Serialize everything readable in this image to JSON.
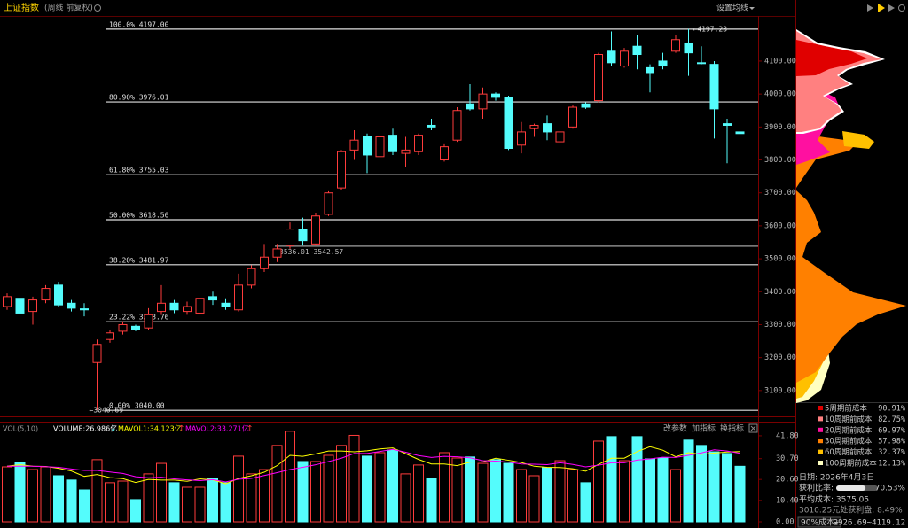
{
  "chart_data": [
    {
      "type": "candlestick",
      "title": "上证指数",
      "subtitle": "(周线 前复权)",
      "ma_button": "设置均线",
      "open": [
        3355,
        3380,
        3340,
        3375,
        3420,
        3365,
        3348,
        3185,
        3255,
        3280,
        3295,
        3290,
        3340,
        3365,
        3340,
        3335,
        3385,
        3365,
        3345,
        3420,
        3470,
        3505,
        3540,
        3590,
        3545,
        3635,
        3715,
        3830,
        3870,
        3810,
        3875,
        3820,
        3825,
        3905,
        3800,
        3860,
        3970,
        3955,
        4000,
        3990,
        3845,
        3895,
        3910,
        3855,
        3900,
        3970,
        3980,
        4130,
        4085,
        4145,
        4080,
        4100,
        4130,
        4155,
        4095,
        4090,
        3910,
        3885
      ],
      "high": [
        3395,
        3390,
        3385,
        3420,
        3430,
        3375,
        3365,
        3255,
        3285,
        3310,
        3300,
        3350,
        3420,
        3375,
        3370,
        3385,
        3400,
        3380,
        3455,
        3480,
        3545,
        3545,
        3610,
        3625,
        3640,
        3705,
        3830,
        3890,
        3880,
        3890,
        3895,
        3870,
        3880,
        3925,
        3850,
        3960,
        4030,
        4020,
        4005,
        3995,
        3915,
        3910,
        3935,
        3890,
        3965,
        3975,
        4125,
        4190,
        4140,
        4180,
        4090,
        4125,
        4180,
        4197.23,
        4145,
        4100,
        3925,
        3945
      ],
      "low": [
        3345,
        3325,
        3300,
        3365,
        3355,
        3340,
        3325,
        3040.69,
        3245,
        3270,
        3280,
        3285,
        3330,
        3335,
        3330,
        3330,
        3360,
        3345,
        3340,
        3410,
        3460,
        3490,
        3530,
        3540,
        3540,
        3630,
        3710,
        3800,
        3760,
        3800,
        3815,
        3780,
        3815,
        3890,
        3795,
        3855,
        3950,
        3925,
        3980,
        3830,
        3820,
        3870,
        3860,
        3820,
        3895,
        3955,
        3975,
        4085,
        4080,
        4075,
        4005,
        4075,
        4125,
        4055,
        4090,
        3865,
        3790,
        3870
      ],
      "close": [
        3385,
        3335,
        3375,
        3410,
        3360,
        3350,
        3345,
        3240,
        3275,
        3300,
        3285,
        3330,
        3365,
        3345,
        3355,
        3380,
        3375,
        3355,
        3420,
        3470,
        3505,
        3530,
        3590,
        3555,
        3630,
        3700,
        3825,
        3860,
        3815,
        3870,
        3825,
        3830,
        3875,
        3900,
        3840,
        3950,
        3955,
        4000,
        3990,
        3835,
        3885,
        3905,
        3885,
        3885,
        3960,
        3960,
        4120,
        4095,
        4130,
        4120,
        4065,
        4085,
        4165,
        4125,
        4093,
        3955,
        3905,
        3880
      ],
      "up_color": "#ff3c3c",
      "down_color": "#54fcfc",
      "ylim": [
        3027,
        4237
      ],
      "yticks": [
        {
          "value": 3100,
          "label": "3100.00"
        },
        {
          "value": 3200,
          "label": "3200.00"
        },
        {
          "value": 3300,
          "label": "3300.00"
        },
        {
          "value": 3400,
          "label": "3400.00"
        },
        {
          "value": 3500,
          "label": "3500.00"
        },
        {
          "value": 3600,
          "label": "3600.00"
        },
        {
          "value": 3700,
          "label": "3700.00"
        },
        {
          "value": 3800,
          "label": "3800.00"
        },
        {
          "value": 3900,
          "label": "3900.00"
        },
        {
          "value": 4000,
          "label": "4000.00"
        },
        {
          "value": 4100,
          "label": "4100.00"
        }
      ],
      "levels": [
        {
          "value": 4197,
          "label": "100.0% 4197.00"
        },
        {
          "value": 3976.01,
          "label": "80.90% 3976.01"
        },
        {
          "value": 3755.03,
          "label": "61.80% 3755.03"
        },
        {
          "value": 3618.5,
          "label": "50.00% 3618.50"
        },
        {
          "value": 3481.97,
          "label": "38.20% 3481.97"
        },
        {
          "value": 3308.76,
          "label": "23.22% 3308.76"
        },
        {
          "value": 3040,
          "label": "0.00% 3040.00"
        }
      ],
      "annotations": [
        {
          "value": 4197.23,
          "label": "←4197.23"
        },
        {
          "value": 3040.69,
          "label": "←3040.69"
        }
      ],
      "range_band": {
        "low": 3536.01,
        "high": 3542.57,
        "label": "3536.01~3542.57"
      }
    },
    {
      "type": "volume",
      "title": "VOL(5,10)",
      "series": [
        {
          "name": "VOLUME:26.986亿",
          "color": "#ffffff",
          "trend": "↓",
          "values": [
            26.7,
            28.9,
            25.4,
            26.7,
            22.4,
            20.3,
            15.5,
            30.2,
            19,
            19.8,
            10.8,
            23.3,
            28.4,
            19,
            16.8,
            16.8,
            21.1,
            19,
            31.9,
            23.3,
            25.4,
            37.1,
            44,
            29.3,
            29.3,
            32.3,
            37.1,
            42,
            31.9,
            33.6,
            34.9,
            23.3,
            27.6,
            21.1,
            33.6,
            31,
            31.5,
            28.4,
            30.2,
            28.4,
            25.4,
            22.4,
            26.3,
            29.7,
            25.4,
            19,
            39.2,
            41.4,
            29.7,
            41.4,
            30.6,
            31,
            25.4,
            39.7,
            37.1,
            34,
            33.2,
            26.986
          ]
        },
        {
          "name": "MAVOL1:34.123亿",
          "color": "#ffff00",
          "trend": "↑",
          "values": [
            27,
            27.8,
            27,
            26.9,
            26,
            24.7,
            22.1,
            23,
            21.5,
            21,
            19.1,
            20.6,
            20.3,
            20.3,
            19.7,
            20.9,
            20.4,
            18.5,
            21.1,
            22.4,
            24.1,
            27.3,
            32.3,
            31.8,
            33,
            34.4,
            34.4,
            34,
            34.5,
            35.4,
            35.9,
            33.1,
            30.3,
            28.1,
            28.1,
            27.3,
            29,
            29.1,
            30.9,
            29.9,
            28.8,
            27,
            26.5,
            26.4,
            25.8,
            24.6,
            27.9,
            30.9,
            30.9,
            34.1,
            36.5,
            34.8,
            31.6,
            33.6,
            32.8,
            33.4,
            33.9,
            34.123
          ]
        },
        {
          "name": "MAVOL2:33.271亿",
          "color": "#ff00ff",
          "trend": "↑",
          "values": [
            27,
            27,
            27,
            26.8,
            26.5,
            25.7,
            25,
            25,
            24.2,
            23.5,
            21.9,
            21.4,
            21.7,
            20.9,
            20.4,
            20,
            20.5,
            19.4,
            20.7,
            21.1,
            22.5,
            23.9,
            25.4,
            26.5,
            27.7,
            29.3,
            30.9,
            33.2,
            33.2,
            34.2,
            35.2,
            33.8,
            32.2,
            31.3,
            31.8,
            31.6,
            31.1,
            29.7,
            29.5,
            29,
            28.1,
            28,
            27.8,
            28.7,
            27.9,
            26.7,
            27.5,
            28.7,
            28.7,
            30,
            30.6,
            31.4,
            31.3,
            32.3,
            33.5,
            35,
            34.4,
            33.271
          ]
        }
      ],
      "ylim": [
        0,
        47.8
      ],
      "yticks": [
        {
          "value": 0,
          "label": "0.00"
        },
        {
          "value": 10.4,
          "label": "10.40"
        },
        {
          "value": 20.6,
          "label": "20.60"
        },
        {
          "value": 30.7,
          "label": "30.70"
        },
        {
          "value": 41.8,
          "label": "41.80"
        }
      ],
      "buttons": [
        "改参数",
        "加指标",
        "换指标"
      ]
    }
  ],
  "chip_panel": {
    "legend": [
      {
        "name": "5周期前成本",
        "value": "90.91%",
        "color": "#e00000"
      },
      {
        "name": "10周期前成本",
        "value": "82.75%",
        "color": "#ff8080"
      },
      {
        "name": "20周期前成本",
        "value": "69.97%",
        "color": "#ff10a0"
      },
      {
        "name": "30周期前成本",
        "value": "57.98%",
        "color": "#ff8000"
      },
      {
        "name": "60周期前成本",
        "value": "32.37%",
        "color": "#ffc000"
      },
      {
        "name": "100周期前成本",
        "value": "12.13%",
        "color": "#ffffc0"
      }
    ],
    "date": "日期: 2026年4月3日",
    "profit_ratio": {
      "name": "获利比率:",
      "value": 70.53,
      "label": "70.53%"
    },
    "avg_cost": "平均成本: 3575.05",
    "profit_at": "3010.25元处获利盘: 8.49%",
    "cost_select": "90%成本",
    "cost_range": "2926.69~4119.12"
  }
}
